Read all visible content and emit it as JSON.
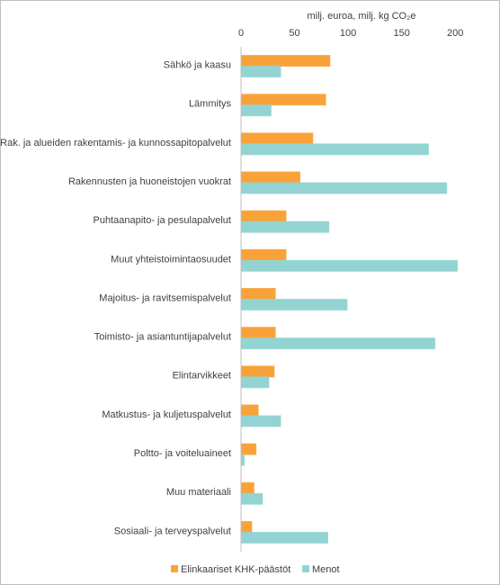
{
  "chart_data": {
    "type": "hbar",
    "xlabel": "milj. euroa, milj. kg CO₂e",
    "categories": [
      "Sähkö ja kaasu",
      "Lämmitys",
      "Rak. ja alueiden rakentamis- ja kunnossapitopalvelut",
      "Rakennusten ja huoneistojen vuokrat",
      "Puhtaanapito- ja pesulapalvelut",
      "Muut yhteistoimintaosuudet",
      "Majoitus- ja ravitsemispalvelut",
      "Toimisto- ja asiantuntijapalvelut",
      "Elintarvikkeet",
      "Matkustus- ja kuljetuspalvelut",
      "Poltto- ja voiteluaineet",
      "Muu materiaali",
      "Sosiaali- ja terveyspalvelut"
    ],
    "series": [
      {
        "name": "Elinkaariset KHK-päästöt",
        "color": "#f9a23a",
        "values": [
          83,
          79,
          67,
          55,
          42,
          42,
          32,
          32,
          31,
          16,
          14,
          12,
          10
        ]
      },
      {
        "name": "Menot",
        "color": "#93d4d3",
        "values": [
          37,
          28,
          175,
          192,
          82,
          202,
          99,
          181,
          26,
          37,
          3,
          20,
          81
        ]
      }
    ],
    "xlim": [
      0,
      225
    ],
    "xticks": [
      0,
      50,
      100,
      150,
      200
    ],
    "grid": false,
    "legend": "bottom"
  }
}
